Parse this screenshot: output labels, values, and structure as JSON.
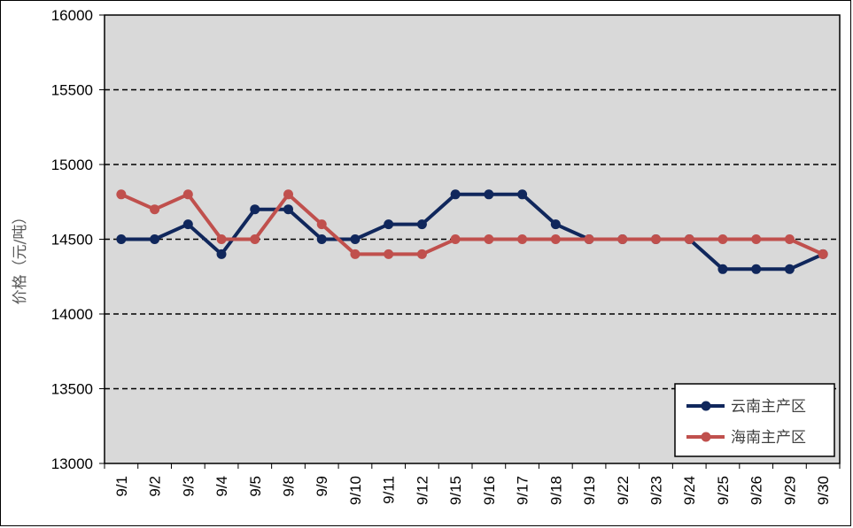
{
  "chart_data": {
    "type": "line",
    "ylabel": "价格（元/吨）",
    "ylim": [
      13000,
      16000
    ],
    "ytick_step": 500,
    "grid": "horizontal dashed",
    "legend_position": "bottom-right",
    "categories": [
      "9/1",
      "9/2",
      "9/3",
      "9/4",
      "9/5",
      "9/8",
      "9/9",
      "9/10",
      "9/11",
      "9/12",
      "9/15",
      "9/16",
      "9/17",
      "9/18",
      "9/19",
      "9/22",
      "9/23",
      "9/24",
      "9/25",
      "9/26",
      "9/29",
      "9/30"
    ],
    "series": [
      {
        "name": "云南主产区",
        "color": "#10275c",
        "values": [
          14500,
          14500,
          14600,
          14400,
          14700,
          14700,
          14500,
          14500,
          14600,
          14600,
          14800,
          14800,
          14800,
          14600,
          14500,
          14500,
          14500,
          14500,
          14300,
          14300,
          14300,
          14400
        ]
      },
      {
        "name": "海南主产区",
        "color": "#c0504d",
        "values": [
          14800,
          14700,
          14800,
          14500,
          14500,
          14800,
          14600,
          14400,
          14400,
          14400,
          14500,
          14500,
          14500,
          14500,
          14500,
          14500,
          14500,
          14500,
          14500,
          14500,
          14500,
          14400
        ]
      }
    ]
  },
  "colors": {
    "plot_background": "#d9d9d9",
    "gridline": "#000000"
  }
}
